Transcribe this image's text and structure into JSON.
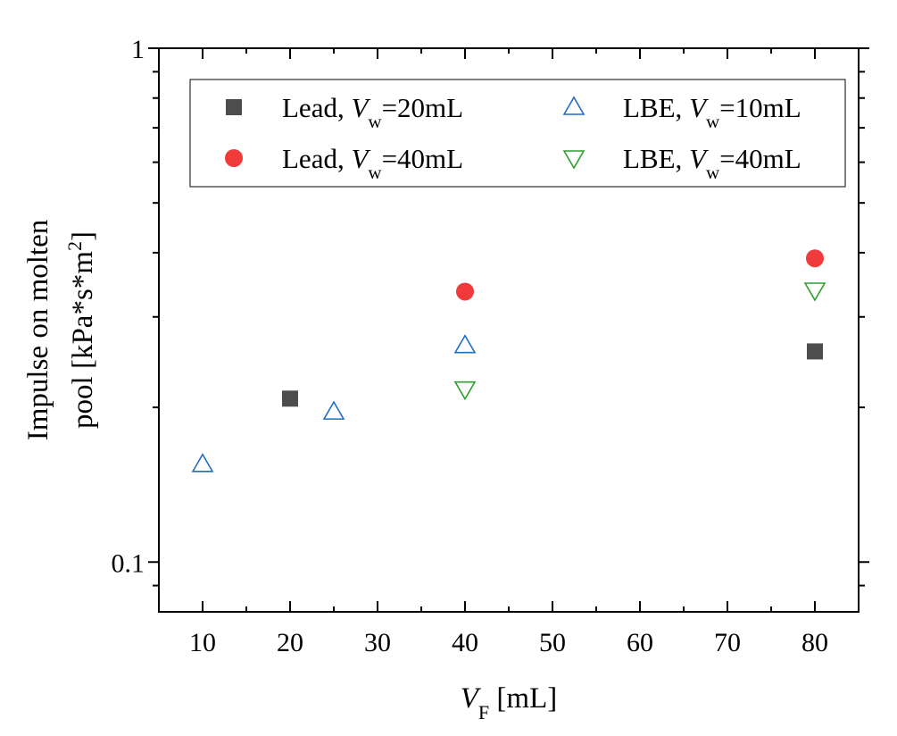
{
  "chart_data": {
    "type": "scatter",
    "x_label": {
      "symbol": "V",
      "subscript": "F",
      "unit": " [mL]"
    },
    "y_label": {
      "line1": "Impulse on molten",
      "line2": "pool [kPa*s*m",
      "line2_sup": "2",
      "line2_end": "]"
    },
    "x_range": [
      5,
      85
    ],
    "y_range": [
      0.08,
      1
    ],
    "y_scale": "log",
    "x_ticks": [
      10,
      20,
      30,
      40,
      50,
      60,
      70,
      80
    ],
    "y_ticks": [
      {
        "value": 0.1,
        "label": "0.1"
      },
      {
        "value": 1,
        "label": "1"
      }
    ],
    "legend_position": "top",
    "series": [
      {
        "label_prefix": "Lead, ",
        "label_var": "V",
        "label_sub": "w",
        "label_suffix": "=20mL",
        "marker": "square-filled",
        "color": "#4d4d4d",
        "points": [
          {
            "x": 20,
            "y": 0.208
          },
          {
            "x": 80,
            "y": 0.257
          }
        ]
      },
      {
        "label_prefix": "Lead, ",
        "label_var": "V",
        "label_sub": "w",
        "label_suffix": "=40mL",
        "marker": "circle-filled",
        "color": "#ef3b3b",
        "points": [
          {
            "x": 40,
            "y": 0.336
          },
          {
            "x": 80,
            "y": 0.39
          }
        ]
      },
      {
        "label_prefix": "LBE, ",
        "label_var": "V",
        "label_sub": "w",
        "label_suffix": "=10mL",
        "marker": "triangle-up-open",
        "color": "#1f6fbf",
        "points": [
          {
            "x": 10,
            "y": 0.155
          },
          {
            "x": 25,
            "y": 0.196
          },
          {
            "x": 40,
            "y": 0.264
          }
        ]
      },
      {
        "label_prefix": "LBE, ",
        "label_var": "V",
        "label_sub": "w",
        "label_suffix": "=40mL",
        "marker": "triangle-down-open",
        "color": "#2ca02c",
        "points": [
          {
            "x": 40,
            "y": 0.217
          },
          {
            "x": 80,
            "y": 0.338
          }
        ]
      }
    ]
  }
}
